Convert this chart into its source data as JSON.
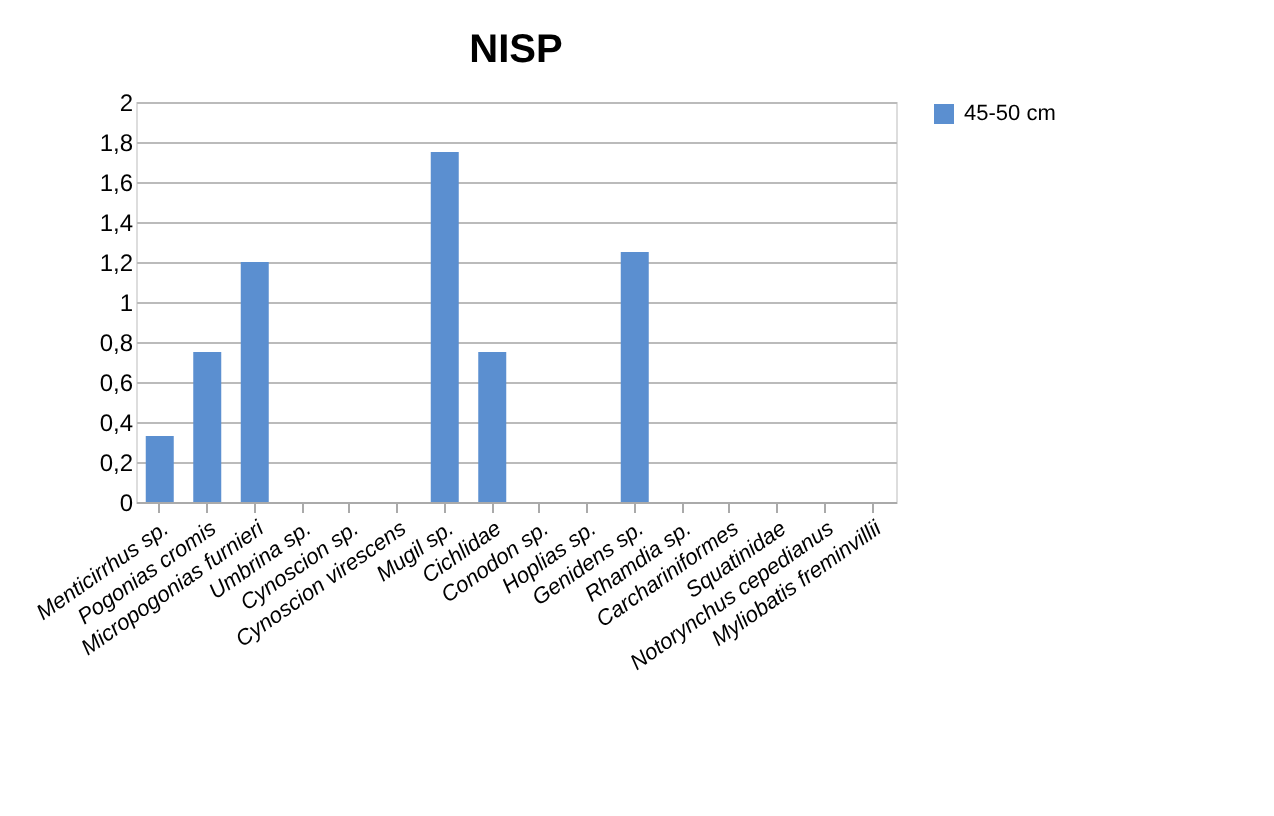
{
  "chart_data": {
    "type": "bar",
    "title": "NISP",
    "categories": [
      "Menticirrhus sp.",
      "Pogonias cromis",
      "Micropogonias furnieri",
      "Umbrina sp.",
      "Cynoscion sp.",
      "Cynoscion virescens",
      "Mugil sp.",
      "Cichlidae",
      "Conodon sp.",
      "Hoplias sp.",
      "Genidens sp.",
      "Rhamdia sp.",
      "Carchariniformes",
      "Squatinidae",
      "Notorynchus cepedianus",
      "Myliobatis freminvillii"
    ],
    "series": [
      {
        "name": "45-50 cm",
        "color": "#5b8fd0",
        "values": [
          0.33,
          0.75,
          1.2,
          0,
          0,
          0,
          1.75,
          0.75,
          0,
          0,
          1.25,
          0,
          0,
          0,
          0,
          0
        ]
      }
    ],
    "ylim": [
      0,
      2
    ],
    "yticks": [
      {
        "value": 0,
        "label": "0"
      },
      {
        "value": 0.2,
        "label": "0,2"
      },
      {
        "value": 0.4,
        "label": "0,4"
      },
      {
        "value": 0.6,
        "label": "0,6"
      },
      {
        "value": 0.8,
        "label": "0,8"
      },
      {
        "value": 1,
        "label": "1"
      },
      {
        "value": 1.2,
        "label": "1,2"
      },
      {
        "value": 1.4,
        "label": "1,4"
      },
      {
        "value": 1.6,
        "label": "1,6"
      },
      {
        "value": 1.8,
        "label": "1,8"
      },
      {
        "value": 2,
        "label": "2"
      }
    ],
    "grid": "y",
    "legend": "right"
  }
}
